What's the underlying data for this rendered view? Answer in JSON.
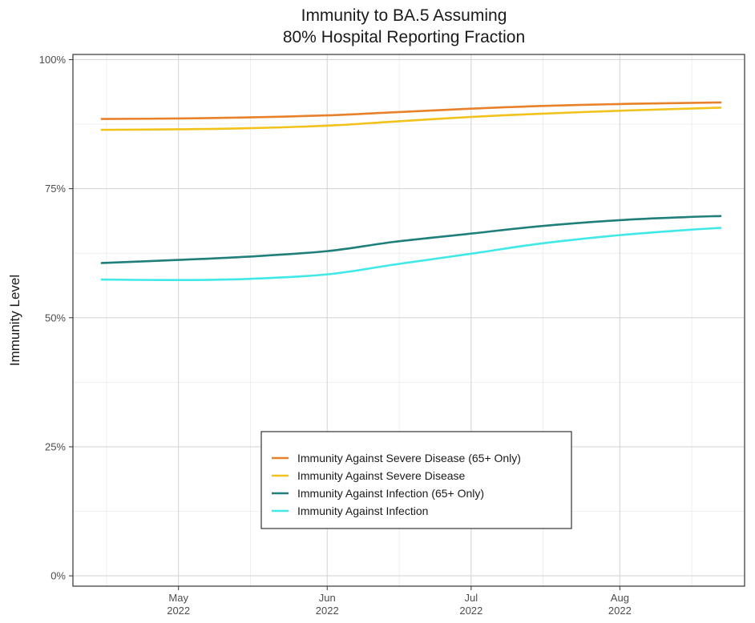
{
  "chart_data": {
    "type": "line",
    "title": [
      "Immunity to BA.5 Assuming",
      "80% Hospital Reporting Fraction"
    ],
    "xlabel": "",
    "ylabel": "Immunity Level",
    "x_range": [
      "2022-04-09",
      "2022-08-27"
    ],
    "ylim": [
      -0.02,
      1.01
    ],
    "y_ticks": [
      0,
      0.25,
      0.5,
      0.75,
      1.0
    ],
    "y_tick_labels": [
      "0%",
      "25%",
      "50%",
      "75%",
      "100%"
    ],
    "x_ticks": [
      {
        "date": "2022-05-01",
        "month": "May",
        "year": "2022"
      },
      {
        "date": "2022-06-01",
        "month": "Jun",
        "year": "2022"
      },
      {
        "date": "2022-07-01",
        "month": "Jul",
        "year": "2022"
      },
      {
        "date": "2022-08-01",
        "month": "Aug",
        "year": "2022"
      }
    ],
    "grid": true,
    "legend_position": "bottom-center",
    "series": [
      {
        "name": "Immunity Against Severe Disease (65+ Only)",
        "color": "#E8812A",
        "points": [
          [
            "2022-04-15",
            0.885
          ],
          [
            "2022-05-01",
            0.886
          ],
          [
            "2022-05-15",
            0.888
          ],
          [
            "2022-06-01",
            0.892
          ],
          [
            "2022-06-15",
            0.898
          ],
          [
            "2022-07-01",
            0.905
          ],
          [
            "2022-07-15",
            0.91
          ],
          [
            "2022-08-01",
            0.914
          ],
          [
            "2022-08-15",
            0.916
          ],
          [
            "2022-08-22",
            0.917
          ]
        ]
      },
      {
        "name": "Immunity Against Severe Disease",
        "color": "#F2C21A",
        "points": [
          [
            "2022-04-15",
            0.864
          ],
          [
            "2022-05-01",
            0.865
          ],
          [
            "2022-05-15",
            0.867
          ],
          [
            "2022-06-01",
            0.872
          ],
          [
            "2022-06-15",
            0.88
          ],
          [
            "2022-07-01",
            0.889
          ],
          [
            "2022-07-15",
            0.895
          ],
          [
            "2022-08-01",
            0.901
          ],
          [
            "2022-08-15",
            0.905
          ],
          [
            "2022-08-22",
            0.907
          ]
        ]
      },
      {
        "name": "Immunity Against Infection (65+ Only)",
        "color": "#1F7F7A",
        "points": [
          [
            "2022-04-15",
            0.606
          ],
          [
            "2022-05-01",
            0.612
          ],
          [
            "2022-05-15",
            0.618
          ],
          [
            "2022-06-01",
            0.629
          ],
          [
            "2022-06-15",
            0.647
          ],
          [
            "2022-07-01",
            0.663
          ],
          [
            "2022-07-15",
            0.677
          ],
          [
            "2022-08-01",
            0.689
          ],
          [
            "2022-08-15",
            0.695
          ],
          [
            "2022-08-22",
            0.697
          ]
        ]
      },
      {
        "name": "Immunity Against Infection",
        "color": "#40E8E8",
        "points": [
          [
            "2022-04-15",
            0.574
          ],
          [
            "2022-05-01",
            0.573
          ],
          [
            "2022-05-15",
            0.575
          ],
          [
            "2022-06-01",
            0.584
          ],
          [
            "2022-06-15",
            0.603
          ],
          [
            "2022-07-01",
            0.624
          ],
          [
            "2022-07-15",
            0.643
          ],
          [
            "2022-08-01",
            0.66
          ],
          [
            "2022-08-15",
            0.67
          ],
          [
            "2022-08-22",
            0.674
          ]
        ]
      }
    ]
  }
}
